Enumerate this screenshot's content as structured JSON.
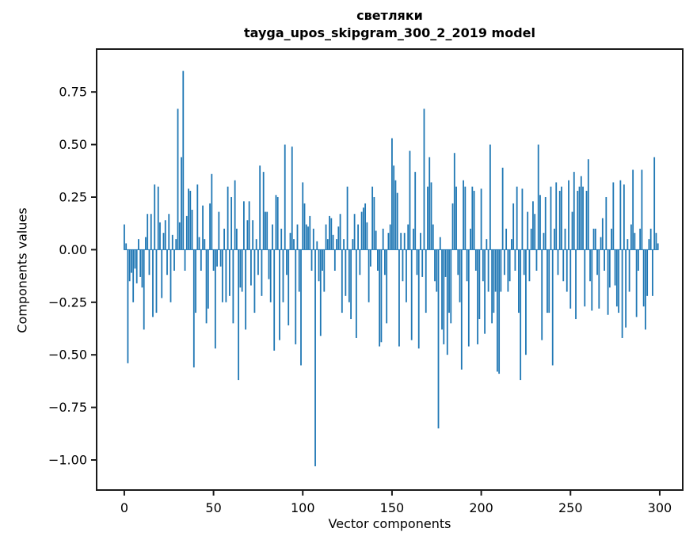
{
  "title": {
    "line1": "светляки",
    "line2": "tayga_upos_skipgram_300_2_2019 model"
  },
  "axes": {
    "xlabel": "Vector components",
    "ylabel": "Components values",
    "x_ticks": [
      {
        "v": 0,
        "label": "0"
      },
      {
        "v": 50,
        "label": "50"
      },
      {
        "v": 100,
        "label": "100"
      },
      {
        "v": 150,
        "label": "150"
      },
      {
        "v": 200,
        "label": "200"
      },
      {
        "v": 250,
        "label": "250"
      },
      {
        "v": 300,
        "label": "300"
      }
    ],
    "y_ticks": [
      {
        "v": 0.75,
        "label": "0.75"
      },
      {
        "v": 0.5,
        "label": "0.50"
      },
      {
        "v": 0.25,
        "label": "0.25"
      },
      {
        "v": 0.0,
        "label": "0.00"
      },
      {
        "v": -0.25,
        "label": "−0.25"
      },
      {
        "v": -0.5,
        "label": "−0.50"
      },
      {
        "v": -0.75,
        "label": "−0.75"
      },
      {
        "v": -1.0,
        "label": "−1.00"
      }
    ]
  },
  "chart_data": {
    "type": "bar",
    "title": "светляки",
    "subtitle": "tayga_upos_skipgram_300_2_2019 model",
    "xlabel": "Vector components",
    "ylabel": "Components values",
    "bar_color": "#1f77b4",
    "spine_color": "#1a1a1a",
    "bar_width": 0.8,
    "xlim": [
      -15.5,
      312.9
    ],
    "ylim": [
      -1.143,
      0.954
    ],
    "grid": false,
    "legend": "none",
    "x_start": 0,
    "values": [
      0.12,
      0.03,
      -0.54,
      -0.15,
      -0.11,
      -0.25,
      -0.09,
      -0.16,
      0.05,
      -0.13,
      -0.18,
      -0.38,
      0.06,
      0.17,
      -0.12,
      0.17,
      -0.32,
      0.31,
      -0.3,
      0.3,
      0.13,
      -0.23,
      0.08,
      0.14,
      -0.12,
      0.17,
      -0.25,
      0.07,
      -0.1,
      0.05,
      0.67,
      0.13,
      0.44,
      0.85,
      -0.1,
      0.16,
      0.29,
      0.28,
      0.19,
      -0.56,
      -0.3,
      0.31,
      0.06,
      -0.1,
      0.21,
      0.05,
      -0.35,
      -0.28,
      0.22,
      0.36,
      -0.1,
      -0.47,
      -0.08,
      0.18,
      -0.08,
      -0.25,
      0.1,
      -0.25,
      0.3,
      -0.22,
      0.25,
      -0.35,
      0.33,
      0.1,
      -0.62,
      -0.18,
      -0.2,
      0.23,
      -0.38,
      0.14,
      0.23,
      -0.17,
      0.14,
      -0.3,
      0.05,
      -0.12,
      0.4,
      -0.22,
      0.37,
      0.18,
      0.18,
      -0.14,
      -0.25,
      0.12,
      -0.48,
      0.26,
      0.25,
      -0.43,
      0.1,
      -0.25,
      0.5,
      -0.12,
      -0.36,
      0.08,
      0.49,
      0.05,
      -0.45,
      0.12,
      -0.2,
      -0.55,
      0.32,
      0.22,
      0.12,
      0.11,
      0.16,
      -0.1,
      0.1,
      -1.03,
      0.04,
      -0.15,
      -0.41,
      -0.1,
      -0.2,
      0.12,
      0.05,
      0.16,
      0.15,
      0.07,
      -0.1,
      0.05,
      0.11,
      0.17,
      -0.3,
      0.05,
      -0.22,
      0.3,
      -0.25,
      -0.33,
      0.05,
      0.17,
      -0.42,
      0.12,
      -0.12,
      0.18,
      0.2,
      0.22,
      0.13,
      -0.25,
      -0.08,
      0.3,
      0.25,
      0.09,
      -0.1,
      -0.46,
      -0.44,
      0.1,
      -0.12,
      -0.35,
      0.08,
      0.12,
      0.53,
      0.4,
      0.33,
      0.27,
      -0.46,
      0.08,
      -0.15,
      0.08,
      -0.25,
      0.12,
      0.47,
      -0.43,
      0.1,
      0.37,
      -0.12,
      -0.47,
      0.08,
      -0.13,
      0.67,
      -0.3,
      0.3,
      0.44,
      0.32,
      0.12,
      -0.15,
      -0.2,
      -0.85,
      0.06,
      -0.38,
      -0.45,
      -0.13,
      -0.5,
      -0.3,
      -0.35,
      0.22,
      0.46,
      0.3,
      -0.12,
      -0.25,
      -0.57,
      0.33,
      0.3,
      -0.15,
      -0.46,
      0.1,
      0.3,
      0.28,
      -0.1,
      -0.45,
      -0.33,
      0.29,
      -0.15,
      -0.4,
      0.05,
      -0.2,
      0.5,
      -0.35,
      -0.3,
      -0.2,
      -0.58,
      -0.59,
      -0.2,
      0.39,
      -0.12,
      0.1,
      -0.2,
      -0.15,
      0.05,
      0.22,
      -0.1,
      0.3,
      -0.3,
      -0.62,
      0.29,
      -0.12,
      -0.5,
      0.18,
      -0.15,
      0.1,
      0.23,
      0.17,
      -0.1,
      0.5,
      0.26,
      -0.43,
      0.08,
      0.25,
      -0.3,
      -0.3,
      0.3,
      -0.55,
      0.1,
      0.32,
      -0.12,
      0.28,
      0.3,
      -0.15,
      0.1,
      -0.2,
      0.33,
      -0.28,
      0.18,
      0.37,
      -0.33,
      0.28,
      0.3,
      0.35,
      0.3,
      -0.27,
      0.28,
      0.43,
      -0.15,
      -0.29,
      0.1,
      0.1,
      -0.12,
      -0.28,
      0.06,
      0.15,
      -0.1,
      0.25,
      -0.31,
      -0.18,
      0.1,
      0.32,
      -0.17,
      -0.27,
      -0.3,
      0.33,
      -0.42,
      0.31,
      -0.37,
      0.05,
      -0.2,
      0.12,
      0.38,
      0.08,
      -0.32,
      -0.1,
      0.1,
      0.38,
      -0.27,
      -0.38,
      -0.22,
      0.05,
      0.1,
      -0.22,
      0.44,
      0.08,
      0.03
    ]
  }
}
